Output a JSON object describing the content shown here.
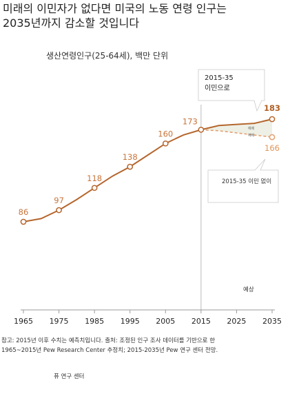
{
  "title_lines": [
    "미래의 이민자가 없다면 미국의 노동 연령 인구는",
    "2035년까지 감소할 것입니다"
  ],
  "subtitle": "생산연령인구(25-64세), 백만 단위",
  "callout_with": "2015-35\n이민으로",
  "callout_without": "2015-35 이민 없이",
  "mini_labels": [
    "예제",
    "예제"
  ],
  "projection_label": "예상",
  "note_lines": [
    "참고: 2015년 이후 수치는 예측치입니다. 출처: 조정된 인구 조사 데이터를 기반으로 한",
    "1965~2015년 Pew Research Center 추정치; 2015-2035년 Pew 연구 센터 전망."
  ],
  "source": "퓨 연구 센터",
  "colors": {
    "line": "#b5652c",
    "line_light": "#e3a070",
    "label": "#c8743a",
    "label_bold": "#b06024",
    "axis": "#999999",
    "divider": "#bbbbbb",
    "band": "#eef0e6"
  },
  "chart_data": {
    "type": "line",
    "x_ticks": [
      1965,
      1975,
      1985,
      1995,
      2005,
      2015,
      2025,
      2035
    ],
    "xlim": [
      1965,
      2035
    ],
    "ylim": [
      60,
      195
    ],
    "projection_start": 2015,
    "series": [
      {
        "id": "historical",
        "x": [
          1965,
          1970,
          1975,
          1980,
          1985,
          1990,
          1995,
          2000,
          2005,
          2010,
          2015
        ],
        "values": [
          86,
          89,
          97,
          107,
          118,
          129,
          138,
          149,
          160,
          168,
          173
        ]
      },
      {
        "id": "with_immigration",
        "x": [
          2015,
          2020,
          2025,
          2030,
          2035
        ],
        "values": [
          173,
          177,
          178,
          179,
          183
        ]
      },
      {
        "id": "without_immigration",
        "x": [
          2015,
          2020,
          2025,
          2030,
          2035
        ],
        "values": [
          173,
          172,
          170,
          168,
          166
        ]
      }
    ],
    "point_labels": [
      {
        "x": 1965,
        "y": 86,
        "text": "86"
      },
      {
        "x": 1975,
        "y": 97,
        "text": "97"
      },
      {
        "x": 1985,
        "y": 118,
        "text": "118"
      },
      {
        "x": 1995,
        "y": 138,
        "text": "138"
      },
      {
        "x": 2005,
        "y": 160,
        "text": "160"
      },
      {
        "x": 2015,
        "y": 173,
        "text": "173"
      },
      {
        "x": 2035,
        "y": 183,
        "text": "183"
      },
      {
        "x": 2035,
        "y": 166,
        "text": "166"
      }
    ]
  }
}
